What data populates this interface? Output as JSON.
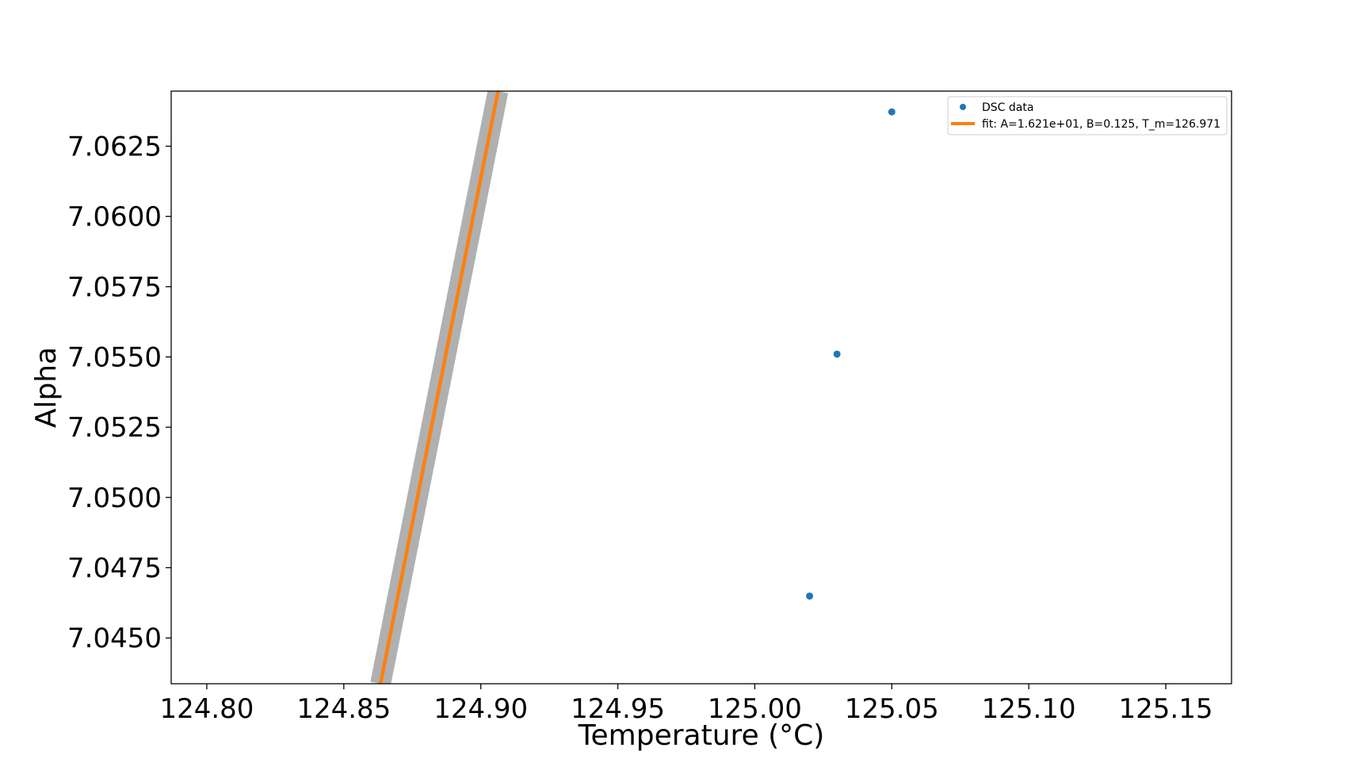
{
  "chart_data": {
    "type": "scatter",
    "xlabel": "Temperature (°C)",
    "ylabel": "Alpha",
    "xlim": [
      124.787,
      125.174
    ],
    "ylim": [
      7.04337,
      7.06446
    ],
    "x_ticks": [
      124.8,
      124.85,
      124.9,
      124.95,
      125.0,
      125.05,
      125.1,
      125.15
    ],
    "x_tick_labels": [
      "124.80",
      "124.85",
      "124.90",
      "124.95",
      "125.00",
      "125.05",
      "125.10",
      "125.15"
    ],
    "y_ticks": [
      7.045,
      7.0475,
      7.05,
      7.0525,
      7.055,
      7.0575,
      7.06,
      7.0625
    ],
    "y_tick_labels": [
      "7.0450",
      "7.0475",
      "7.0500",
      "7.0525",
      "7.0550",
      "7.0575",
      "7.0600",
      "7.0625"
    ],
    "grid": false,
    "legend_position": "top-right",
    "series": [
      {
        "name": "DSC data",
        "kind": "points",
        "color": "#1f77b4",
        "points": [
          {
            "x": 125.02,
            "y": 7.04649
          },
          {
            "x": 125.03,
            "y": 7.0551
          },
          {
            "x": 125.05,
            "y": 7.06372
          }
        ]
      },
      {
        "name": "fit: A=1.621e+01, B=0.125, T_m=126.971",
        "kind": "line",
        "color": "#ff7f0e",
        "band_color": "#b0b0b0",
        "points": [
          {
            "x": 124.8634,
            "y": 7.04337
          },
          {
            "x": 124.9063,
            "y": 7.06446
          }
        ]
      }
    ]
  }
}
